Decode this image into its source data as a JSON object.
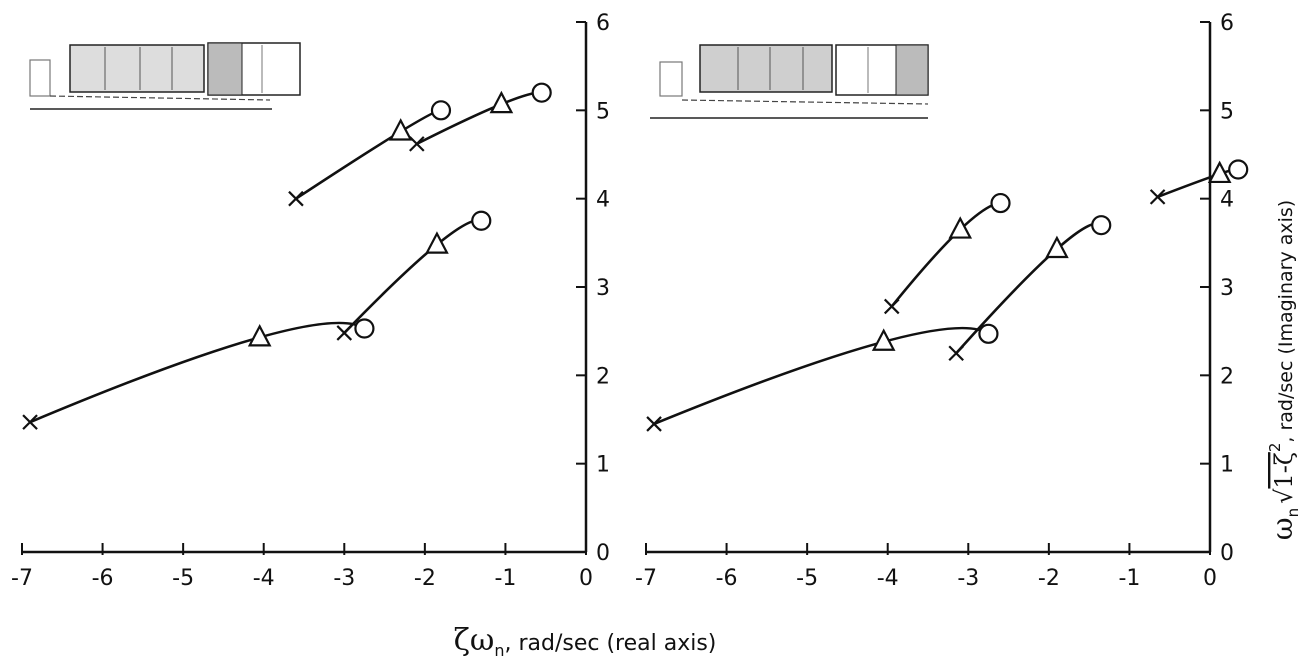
{
  "chart_data": [
    {
      "type": "line",
      "title": "",
      "xlim": [
        -7,
        0
      ],
      "ylim": [
        0,
        6
      ],
      "x_ticks": [
        "-7",
        "-6",
        "-5",
        "-4",
        "-3",
        "-2",
        "-1",
        "0"
      ],
      "y_ticks": [
        "0",
        "1",
        "2",
        "3",
        "4",
        "5",
        "6"
      ],
      "grid": false,
      "series": [
        {
          "points": [
            {
              "x": -3.6,
              "y": 4.0
            },
            {
              "x": -2.3,
              "y": 4.76
            },
            {
              "x": -1.8,
              "y": 5.0
            }
          ],
          "markers": [
            "x",
            "triangle",
            "circle"
          ]
        },
        {
          "points": [
            {
              "x": -2.1,
              "y": 4.62
            },
            {
              "x": -1.05,
              "y": 5.07
            },
            {
              "x": -0.55,
              "y": 5.2
            }
          ],
          "markers": [
            "x",
            "triangle",
            "circle"
          ]
        },
        {
          "points": [
            {
              "x": -3.0,
              "y": 2.48
            },
            {
              "x": -1.85,
              "y": 3.48
            },
            {
              "x": -1.3,
              "y": 3.75
            }
          ],
          "markers": [
            "x",
            "triangle",
            "circle"
          ]
        },
        {
          "points": [
            {
              "x": -6.9,
              "y": 1.47
            },
            {
              "x": -4.05,
              "y": 2.43
            },
            {
              "x": -2.75,
              "y": 2.53
            }
          ],
          "markers": [
            "x",
            "triangle",
            "circle"
          ]
        }
      ]
    },
    {
      "type": "line",
      "title": "",
      "xlim": [
        -7,
        0
      ],
      "ylim": [
        0,
        6
      ],
      "x_ticks": [
        "-7",
        "-6",
        "-5",
        "-4",
        "-3",
        "-2",
        "-1",
        "0"
      ],
      "y_ticks": [
        "0",
        "1",
        "2",
        "3",
        "4",
        "5",
        "6"
      ],
      "grid": false,
      "series": [
        {
          "points": [
            {
              "x": -3.95,
              "y": 2.78
            },
            {
              "x": -3.1,
              "y": 3.65
            },
            {
              "x": -2.6,
              "y": 3.95
            }
          ],
          "markers": [
            "x",
            "triangle",
            "circle"
          ]
        },
        {
          "points": [
            {
              "x": -3.15,
              "y": 2.25
            },
            {
              "x": -1.9,
              "y": 3.43
            },
            {
              "x": -1.35,
              "y": 3.7
            }
          ],
          "markers": [
            "x",
            "triangle",
            "circle"
          ]
        },
        {
          "points": [
            {
              "x": -6.9,
              "y": 1.45
            },
            {
              "x": -4.05,
              "y": 2.38
            },
            {
              "x": -2.75,
              "y": 2.47
            }
          ],
          "markers": [
            "x",
            "triangle",
            "circle"
          ]
        },
        {
          "points": [
            {
              "x": -0.65,
              "y": 4.02
            },
            {
              "x": 0.12,
              "y": 4.28
            },
            {
              "x": 0.35,
              "y": 4.33
            }
          ],
          "markers": [
            "x",
            "triangle",
            "circle"
          ]
        }
      ]
    }
  ],
  "labels": {
    "x_axis": {
      "symbol": "ζω",
      "subscript": "n",
      "text": ", rad/sec (real axis)"
    },
    "y_axis": {
      "omega": "ω",
      "subscript": "n",
      "root": "1-ζ",
      "power": "2",
      "text": ", rad/sec (Imaginary axis)"
    }
  }
}
